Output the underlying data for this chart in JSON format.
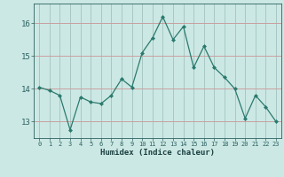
{
  "x": [
    0,
    1,
    2,
    3,
    4,
    5,
    6,
    7,
    8,
    9,
    10,
    11,
    12,
    13,
    14,
    15,
    16,
    17,
    18,
    19,
    20,
    21,
    22,
    23
  ],
  "y": [
    14.05,
    13.95,
    13.8,
    12.75,
    13.75,
    13.6,
    13.55,
    13.8,
    14.3,
    14.05,
    15.1,
    15.55,
    16.2,
    15.5,
    15.9,
    14.65,
    15.3,
    14.65,
    14.35,
    14.0,
    13.1,
    13.8,
    13.45,
    13.0
  ],
  "line_color": "#2a7a6e",
  "marker": "D",
  "marker_size": 2.0,
  "bg_color": "#cce8e4",
  "grid_color_h": "#c8a0a0",
  "grid_color_v": "#a8c8c4",
  "xlabel": "Humidex (Indice chaleur)",
  "ylim": [
    12.5,
    16.6
  ],
  "xlim": [
    -0.5,
    23.5
  ],
  "yticks": [
    13,
    14,
    15,
    16
  ],
  "xticks": [
    0,
    1,
    2,
    3,
    4,
    5,
    6,
    7,
    8,
    9,
    10,
    11,
    12,
    13,
    14,
    15,
    16,
    17,
    18,
    19,
    20,
    21,
    22,
    23
  ],
  "tick_color": "#2a6060",
  "label_color": "#1a4040"
}
